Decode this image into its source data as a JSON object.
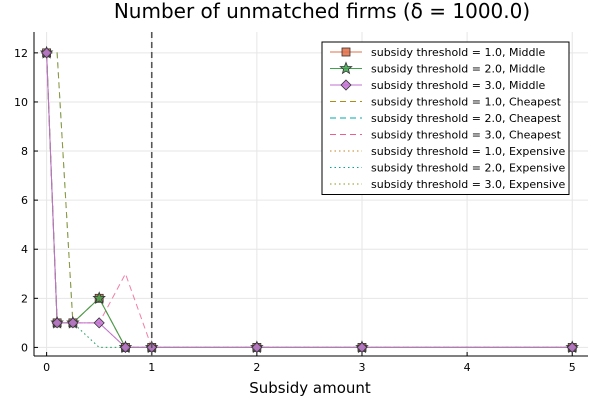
{
  "chart_data": {
    "type": "line",
    "title": "Number of unmatched firms (δ = 1000.0)",
    "xlabel": "Subsidy amount",
    "ylabel": "",
    "xlim": [
      -0.12,
      5.15
    ],
    "ylim": [
      -0.35,
      12.85
    ],
    "xticks": [
      0,
      1,
      2,
      3,
      4,
      5
    ],
    "yticks": [
      0,
      2,
      4,
      6,
      8,
      10,
      12
    ],
    "grid": true,
    "legend_position": "top-right",
    "vline": {
      "x": 1,
      "style": "dashed",
      "color": "#555555"
    },
    "x": [
      0,
      0.1,
      0.25,
      0.5,
      0.75,
      1,
      2,
      3,
      5
    ],
    "series": [
      {
        "name": "subsidy threshold = 1.0, Middle",
        "color": "#e26f46",
        "style": "solid",
        "marker": "square",
        "values": [
          12,
          1,
          1,
          2,
          0,
          0,
          0,
          0,
          0
        ]
      },
      {
        "name": "subsidy threshold = 2.0, Middle",
        "color": "#3da44d",
        "style": "solid",
        "marker": "star",
        "values": [
          12,
          1,
          1,
          2,
          0,
          0,
          0,
          0,
          0
        ]
      },
      {
        "name": "subsidy threshold = 3.0, Middle",
        "color": "#c271d2",
        "style": "solid",
        "marker": "diamond",
        "values": [
          12,
          1,
          1,
          1,
          0,
          0,
          0,
          0,
          0
        ]
      },
      {
        "name": "subsidy threshold = 1.0, Cheapest",
        "color": "#ac8d18",
        "style": "dashed",
        "marker": "none",
        "values": [
          12,
          12,
          1,
          2,
          0,
          0,
          0,
          0,
          0
        ]
      },
      {
        "name": "subsidy threshold = 2.0, Cheapest",
        "color": "#00a9ad",
        "style": "dashed",
        "marker": "none",
        "values": [
          12,
          12,
          1,
          2,
          0,
          0,
          0,
          0,
          0
        ]
      },
      {
        "name": "subsidy threshold = 3.0, Cheapest",
        "color": "#ed5e93",
        "style": "dashed",
        "marker": "none",
        "values": [
          12,
          1,
          1,
          1,
          3,
          0,
          0,
          0,
          0
        ]
      },
      {
        "name": "subsidy threshold = 1.0, Expensive",
        "color": "#c68125",
        "style": "dotted",
        "marker": "none",
        "values": [
          12,
          1,
          1,
          1,
          0,
          0,
          0,
          0,
          0
        ]
      },
      {
        "name": "subsidy threshold = 2.0, Expensive",
        "color": "#00a98d",
        "style": "dotted",
        "marker": "none",
        "values": [
          12,
          1,
          1,
          0,
          0,
          0,
          0,
          0,
          0
        ]
      },
      {
        "name": "subsidy threshold = 3.0, Expensive",
        "color": "#8e971d",
        "style": "dotted",
        "marker": "none",
        "values": [
          12,
          1,
          1,
          0,
          0,
          0,
          0,
          0,
          0
        ]
      }
    ]
  }
}
